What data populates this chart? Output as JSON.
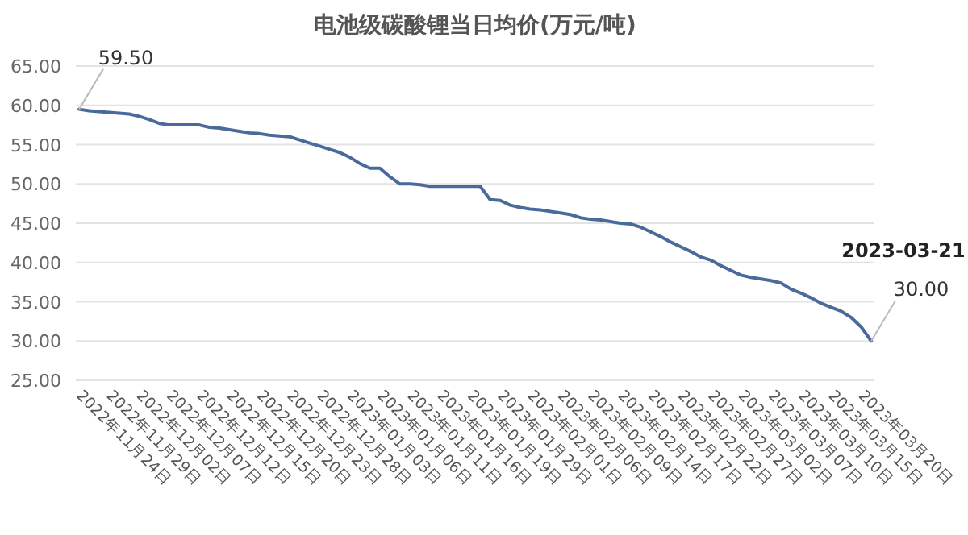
{
  "chart_data": {
    "type": "line",
    "title": "电池级碳酸锂当日均价(万元/吨)",
    "categories": [
      "2022年11月24日",
      null,
      null,
      "2022年11月29日",
      null,
      null,
      "2022年12月02日",
      null,
      null,
      "2022年12月07日",
      null,
      null,
      "2022年12月12日",
      null,
      null,
      "2022年12月15日",
      null,
      null,
      "2022年12月20日",
      null,
      null,
      "2022年12月23日",
      null,
      null,
      "2022年12月28日",
      null,
      null,
      "2023年01月03日",
      null,
      null,
      "2023年01月06日",
      null,
      null,
      "2023年01月11日",
      null,
      null,
      "2023年01月16日",
      null,
      null,
      "2023年01月19日",
      null,
      null,
      "2023年01月29日",
      null,
      null,
      "2023年02月01日",
      null,
      null,
      "2023年02月06日",
      null,
      null,
      "2023年02月09日",
      null,
      null,
      "2023年02月14日",
      null,
      null,
      "2023年02月17日",
      null,
      null,
      "2023年02月22日",
      null,
      null,
      "2023年02月27日",
      null,
      null,
      "2023年03月02日",
      null,
      null,
      "2023年03月07日",
      null,
      null,
      "2023年03月10日",
      null,
      null,
      "2023年03月15日",
      null,
      null,
      "2023年03月20日",
      null
    ],
    "values": [
      59.5,
      59.3,
      59.2,
      59.1,
      59.0,
      58.9,
      58.6,
      58.2,
      57.7,
      57.5,
      57.5,
      57.5,
      57.5,
      57.2,
      57.1,
      56.9,
      56.7,
      56.5,
      56.4,
      56.2,
      56.1,
      56.0,
      55.6,
      55.2,
      54.8,
      54.4,
      54.0,
      53.4,
      52.6,
      52.0,
      52.0,
      50.9,
      50.0,
      50.0,
      49.9,
      49.7,
      49.7,
      49.7,
      49.7,
      49.7,
      49.7,
      48.0,
      47.9,
      47.3,
      47.0,
      46.8,
      46.7,
      46.5,
      46.3,
      46.1,
      45.7,
      45.5,
      45.4,
      45.2,
      45.0,
      44.9,
      44.5,
      43.9,
      43.3,
      42.6,
      42.0,
      41.4,
      40.7,
      40.3,
      39.6,
      39.0,
      38.4,
      38.1,
      37.9,
      37.7,
      37.4,
      36.6,
      36.1,
      35.5,
      34.8,
      34.3,
      33.8,
      33.0,
      31.8,
      30.0
    ],
    "value_labels": [
      "59.50",
      null,
      null,
      null,
      null,
      null,
      null,
      null,
      null,
      null,
      null,
      null,
      null,
      null,
      null,
      null,
      null,
      null,
      null,
      null,
      null,
      null,
      null,
      null,
      null,
      null,
      null,
      null,
      null,
      null,
      null,
      null,
      null,
      null,
      null,
      null,
      null,
      null,
      null,
      null,
      null,
      null,
      null,
      null,
      null,
      null,
      null,
      null,
      null,
      null,
      null,
      null,
      null,
      null,
      null,
      null,
      null,
      null,
      null,
      null,
      null,
      null,
      null,
      null,
      null,
      null,
      null,
      null,
      null,
      null,
      null,
      null,
      null,
      null,
      null,
      null,
      null,
      null,
      null,
      "30.00"
    ],
    "annotations": [
      "2023-03-21"
    ],
    "color": "#4a6a9c",
    "ylim": [
      25,
      65
    ],
    "yticks": [
      {
        "value": 25,
        "label": "25.00"
      },
      {
        "value": 30,
        "label": "30.00"
      },
      {
        "value": 35,
        "label": "35.00"
      },
      {
        "value": 40,
        "label": "40.00"
      },
      {
        "value": 45,
        "label": "45.00"
      },
      {
        "value": 50,
        "label": "50.00"
      },
      {
        "value": 55,
        "label": "55.00"
      },
      {
        "value": 60,
        "label": "60.00"
      },
      {
        "value": 65,
        "label": "65.00"
      }
    ],
    "grid": "y"
  }
}
